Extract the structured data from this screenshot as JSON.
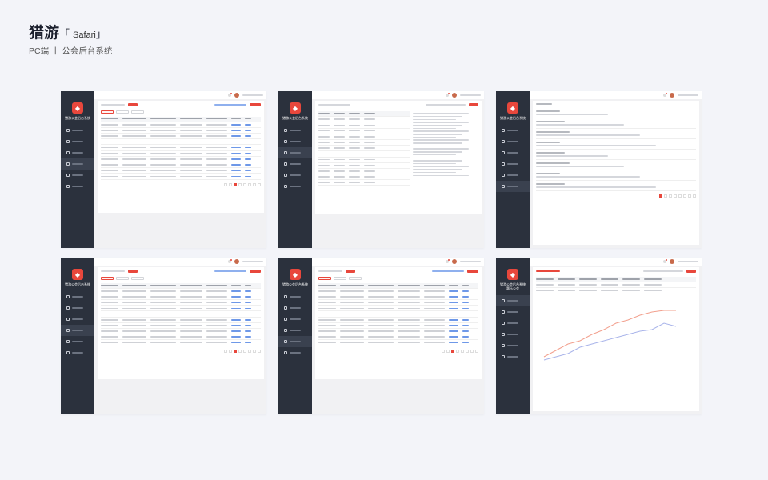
{
  "header": {
    "app_name": "猎游",
    "bracket_open": "「",
    "platform": "Safari",
    "bracket_close": "」",
    "subtitle": "PC端 丨 公会后台系统"
  },
  "accent": "#e8473c",
  "sidebar_bg": "#2b313d",
  "screens": [
    {
      "sidebar_title": "猎游公会后台系统",
      "active_menu": 3,
      "layout": "table"
    },
    {
      "sidebar_title": "猎游公会后台系统",
      "active_menu": 2,
      "layout": "stats"
    },
    {
      "sidebar_title": "猎游公会后台系统",
      "active_menu": 5,
      "layout": "notices"
    },
    {
      "sidebar_title": "猎游公会后台系统",
      "active_menu": 3,
      "layout": "table"
    },
    {
      "sidebar_title": "猎游公会后台系统",
      "active_menu": 4,
      "layout": "table"
    },
    {
      "sidebar_title": "猎游公会后台系统 惠乐公会",
      "active_menu": 0,
      "layout": "chart"
    }
  ],
  "menu_icons": [
    "home-icon",
    "chart-icon",
    "list-icon",
    "user-icon",
    "doc-icon",
    "calendar-icon"
  ]
}
